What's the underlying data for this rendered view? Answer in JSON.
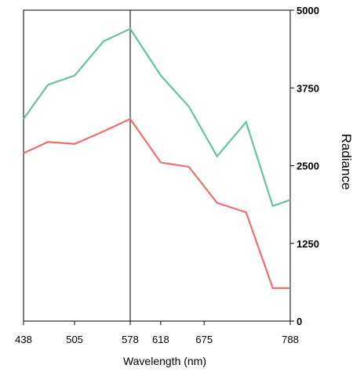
{
  "chart_data": {
    "type": "line",
    "xlabel": "Wavelength (nm)",
    "ylabel": "Radiance",
    "x_ticks": [
      438,
      505,
      578,
      618,
      675,
      788
    ],
    "x_tick_labels": [
      "438",
      "505",
      "578",
      "618",
      "675",
      "788"
    ],
    "y_ticks": [
      0,
      1250,
      2500,
      3750,
      5000
    ],
    "y_tick_labels": [
      "0",
      "1250",
      "2500",
      "3750",
      "5000"
    ],
    "xlim": [
      438,
      788
    ],
    "ylim": [
      0,
      5000
    ],
    "y_axis_side": "right",
    "marker_line_x": 578,
    "grid": false,
    "x": [
      438,
      470,
      505,
      543,
      578,
      618,
      655,
      692,
      730,
      765,
      788
    ],
    "series": [
      {
        "color": "#66c2a5",
        "values": [
          3250,
          3800,
          3950,
          4500,
          4700,
          3950,
          3450,
          2650,
          3200,
          1850,
          1950
        ]
      },
      {
        "color": "#f06e6e",
        "values": [
          2700,
          2880,
          2850,
          3050,
          3250,
          2550,
          2480,
          1900,
          1750,
          530,
          530
        ]
      }
    ]
  }
}
